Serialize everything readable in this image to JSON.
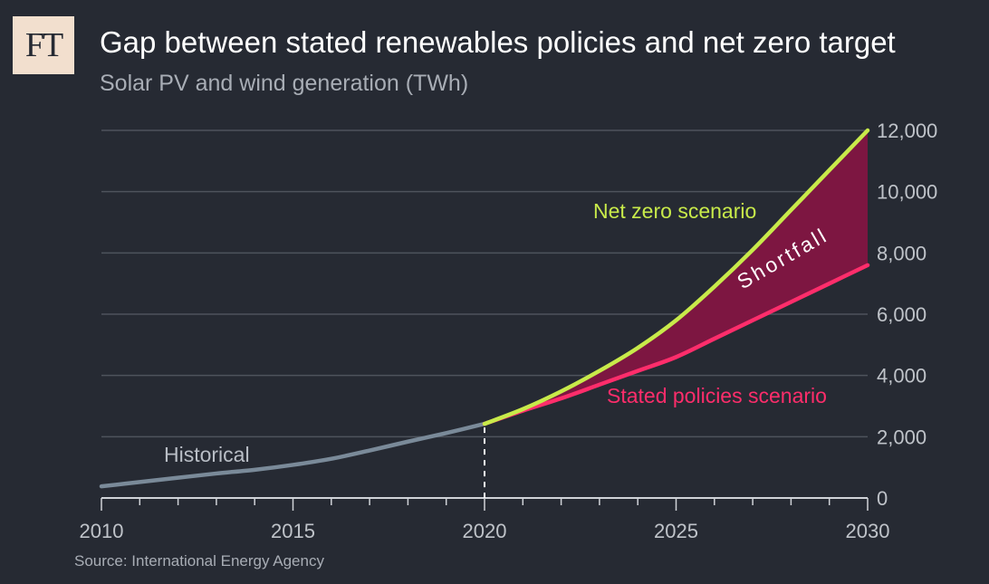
{
  "logo_text": "FT",
  "source": "Source: International Energy Agency",
  "colors": {
    "background": "#262a33",
    "historical": "#7a8a99",
    "net_zero": "#c8ea4a",
    "stated_policies": "#ff2d6b",
    "shortfall_fill": "#7d1641",
    "grid": "#4e535c"
  },
  "chart_data": {
    "type": "line",
    "title": "Gap between stated renewables policies and net zero target",
    "subtitle": "Solar PV and wind generation (TWh)",
    "xlim": [
      2010,
      2030
    ],
    "ylim": [
      0,
      12000
    ],
    "x_ticks": [
      2010,
      2015,
      2020,
      2025,
      2030
    ],
    "x_tick_labels": [
      "2010",
      "2015",
      "2020",
      "2025",
      "2030"
    ],
    "y_ticks": [
      0,
      2000,
      4000,
      6000,
      8000,
      10000,
      12000
    ],
    "y_tick_labels": [
      "0",
      "2,000",
      "4,000",
      "6,000",
      "8,000",
      "10,000",
      "12,000"
    ],
    "y_axis_side": "right",
    "grid": true,
    "series": [
      {
        "name": "Historical",
        "x": [
          2010,
          2011,
          2012,
          2013,
          2014,
          2015,
          2016,
          2017,
          2018,
          2019,
          2020
        ],
        "values": [
          380,
          520,
          660,
          800,
          920,
          1080,
          1280,
          1550,
          1840,
          2120,
          2420
        ]
      },
      {
        "name": "Net zero scenario",
        "x": [
          2020,
          2021,
          2022,
          2023,
          2024,
          2025,
          2026,
          2027,
          2028,
          2029,
          2030
        ],
        "values": [
          2420,
          2900,
          3480,
          4150,
          4900,
          5800,
          6900,
          8100,
          9400,
          10700,
          12000
        ]
      },
      {
        "name": "Stated policies scenario",
        "x": [
          2020,
          2021,
          2022,
          2023,
          2024,
          2025,
          2026,
          2027,
          2028,
          2029,
          2030
        ],
        "values": [
          2420,
          2850,
          3250,
          3700,
          4150,
          4600,
          5200,
          5800,
          6400,
          7000,
          7600
        ]
      }
    ],
    "annotations": [
      {
        "text": "Shortfall",
        "between": [
          "Net zero scenario",
          "Stated policies scenario"
        ]
      }
    ],
    "marker_line": {
      "x": 2020
    }
  }
}
